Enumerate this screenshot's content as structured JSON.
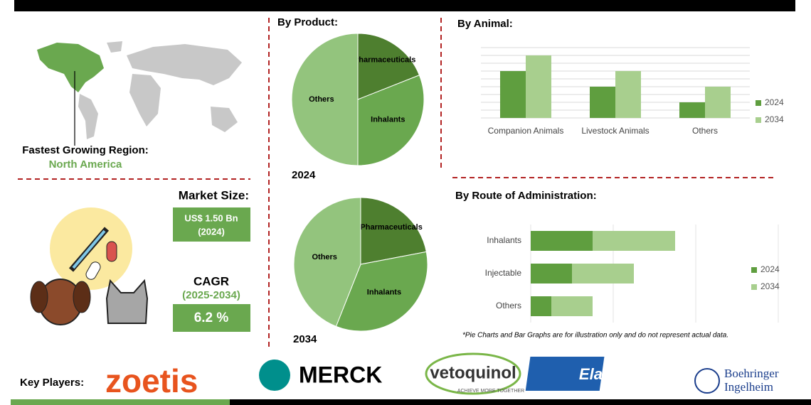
{
  "summary": {
    "fastest_growing_label": "Fastest Growing Region:",
    "region": "North America",
    "market_size_label": "Market Size:",
    "market_size_value": "US$ 1.50 Bn",
    "market_size_year": "(2024)",
    "cagr_label": "CAGR",
    "cagr_period": "(2025-2034)",
    "cagr_value": "6.2 %"
  },
  "key_players": {
    "label": "Key Players:",
    "companies": [
      "zoetis",
      "MERCK",
      "vetoquinol",
      "Elanco",
      [
        "Boehringer",
        "Ingelheim"
      ]
    ],
    "tagline": "ACHIEVE MORE TOGETHER"
  },
  "chart_data": [
    {
      "type": "pie",
      "title": "By Product:",
      "subtitle": "2024",
      "categories": [
        "Pharmaceuticals",
        "Inhalants",
        "Others"
      ],
      "values": [
        19,
        31,
        50
      ],
      "colors": [
        "#4e7f2f",
        "#6aa84f",
        "#93c47d"
      ]
    },
    {
      "type": "pie",
      "subtitle": "2034",
      "categories": [
        "Pharmaceuticals",
        "Inhalants",
        "Others"
      ],
      "values": [
        22,
        34,
        44
      ],
      "colors": [
        "#4e7f2f",
        "#6aa84f",
        "#93c47d"
      ]
    },
    {
      "type": "bar",
      "title": "By Animal:",
      "categories": [
        "Companion Animals",
        "Livestock Animals",
        "Others"
      ],
      "series": [
        {
          "name": "2024",
          "color": "#5f9e3f",
          "values": [
            6,
            4,
            2
          ]
        },
        {
          "name": "2034",
          "color": "#a8cf8e",
          "values": [
            8,
            6,
            4
          ]
        }
      ],
      "ylim": [
        0,
        9
      ],
      "yticks": [
        0,
        1,
        2,
        3,
        4,
        5,
        6,
        7,
        8,
        9
      ],
      "grid": true,
      "legend": "right"
    },
    {
      "type": "hbar",
      "stacked": true,
      "title": "By Route of Administration:",
      "categories": [
        "Inhalants",
        "Injectable",
        "Others"
      ],
      "series": [
        {
          "name": "2024",
          "color": "#5f9e3f",
          "values": [
            1.5,
            1,
            0.5
          ]
        },
        {
          "name": "2034",
          "color": "#a8cf8e",
          "values": [
            2,
            1.5,
            1
          ]
        }
      ],
      "xlim": [
        0,
        6
      ],
      "xticks": [
        0,
        2,
        4,
        6
      ],
      "grid": true,
      "legend": "right",
      "note": "*Pie Charts and Bar Graphs are for illustration only and do not represent actual data."
    }
  ]
}
